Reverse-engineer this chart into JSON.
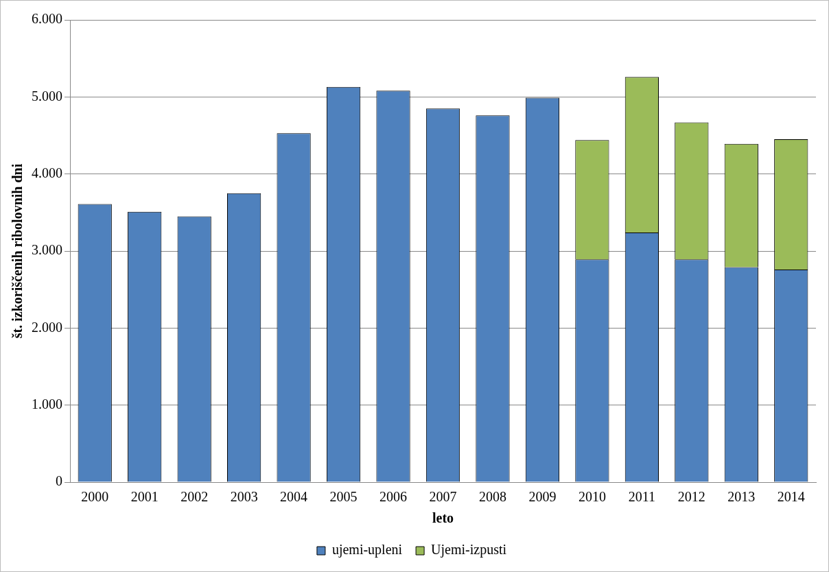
{
  "chart_data": {
    "type": "bar",
    "xlabel": "leto",
    "ylabel": "št. izkoriščenih ribolovnih dni",
    "categories": [
      "2000",
      "2001",
      "2002",
      "2003",
      "2004",
      "2005",
      "2006",
      "2007",
      "2008",
      "2009",
      "2010",
      "2011",
      "2012",
      "2013",
      "2014"
    ],
    "stacked": true,
    "series": [
      {
        "name": "ujemi-upleni",
        "color": "#4f81bd",
        "values": [
          3610,
          3510,
          3450,
          3750,
          4530,
          5130,
          5080,
          4850,
          4760,
          4990,
          2890,
          3240,
          2890,
          2790,
          2760
        ]
      },
      {
        "name": "Ujemi-izpusti",
        "color": "#9bbb59",
        "values": [
          null,
          null,
          null,
          null,
          null,
          null,
          null,
          null,
          null,
          null,
          1550,
          2020,
          1780,
          1600,
          1690
        ]
      }
    ],
    "ylim": [
      0,
      6000
    ],
    "yticks": [
      0,
      {
        "value": 1000,
        "label": "1.000"
      },
      {
        "value": 2000,
        "label": "2.000"
      },
      {
        "value": 3000,
        "label": "3.000"
      },
      {
        "value": 4000,
        "label": "4.000"
      },
      {
        "value": 5000,
        "label": "5.000"
      },
      {
        "value": 6000,
        "label": "6.000"
      }
    ],
    "grid": "y",
    "legend": "bottom"
  }
}
